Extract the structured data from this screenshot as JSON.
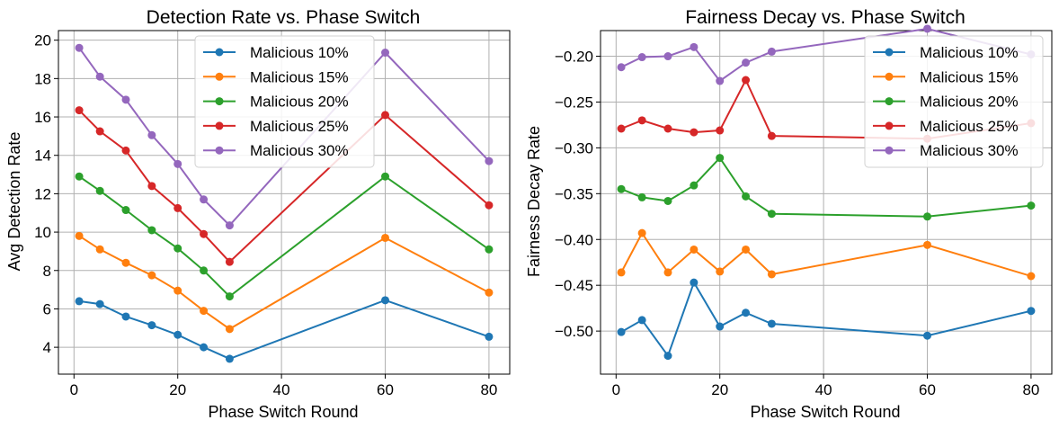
{
  "chart_data": [
    {
      "type": "line",
      "title": "Detection Rate vs. Phase Switch",
      "xlabel": "Phase Switch Round",
      "ylabel": "Avg Detection Rate",
      "x": [
        1,
        5,
        10,
        15,
        20,
        25,
        30,
        60,
        80
      ],
      "xlim": [
        -3,
        84
      ],
      "ylim": [
        2.6,
        20.5
      ],
      "xticks": [
        0,
        20,
        40,
        60,
        80
      ],
      "yticks": [
        4,
        6,
        8,
        10,
        12,
        14,
        16,
        18,
        20
      ],
      "xtick_labels": [
        "0",
        "20",
        "40",
        "60",
        "80"
      ],
      "ytick_labels": [
        "4",
        "6",
        "8",
        "10",
        "12",
        "14",
        "16",
        "18",
        "20"
      ],
      "grid": true,
      "legend_position": "top-right",
      "series": [
        {
          "name": "Malicious 10%",
          "color": "#1f77b4",
          "values": [
            6.4,
            6.25,
            5.6,
            5.15,
            4.65,
            4.0,
            3.4,
            6.45,
            4.55
          ]
        },
        {
          "name": "Malicious 15%",
          "color": "#ff7f0e",
          "values": [
            9.8,
            9.1,
            8.4,
            7.75,
            6.95,
            5.9,
            4.95,
            9.7,
            6.85
          ]
        },
        {
          "name": "Malicious 20%",
          "color": "#2ca02c",
          "values": [
            12.9,
            12.15,
            11.15,
            10.1,
            9.15,
            8.0,
            6.65,
            12.9,
            9.1
          ]
        },
        {
          "name": "Malicious 25%",
          "color": "#d62728",
          "values": [
            16.35,
            15.25,
            14.25,
            12.4,
            11.25,
            9.9,
            8.45,
            16.1,
            11.4
          ]
        },
        {
          "name": "Malicious 30%",
          "color": "#9467bd",
          "values": [
            19.6,
            18.1,
            16.9,
            15.05,
            13.55,
            11.7,
            10.35,
            19.35,
            13.7
          ]
        }
      ]
    },
    {
      "type": "line",
      "title": "Fairness Decay vs. Phase Switch",
      "xlabel": "Phase Switch Round",
      "ylabel": "Fairness Decay Rate",
      "x": [
        1,
        5,
        10,
        15,
        20,
        25,
        30,
        60,
        80
      ],
      "xlim": [
        -3,
        84
      ],
      "ylim": [
        -0.547,
        -0.172
      ],
      "xticks": [
        0,
        20,
        40,
        60,
        80
      ],
      "yticks": [
        -0.5,
        -0.45,
        -0.4,
        -0.35,
        -0.3,
        -0.25,
        -0.2
      ],
      "xtick_labels": [
        "0",
        "20",
        "40",
        "60",
        "80"
      ],
      "ytick_labels": [
        "−0.50",
        "−0.45",
        "−0.40",
        "−0.35",
        "−0.30",
        "−0.25",
        "−0.20"
      ],
      "grid": true,
      "legend_position": "top-right",
      "series": [
        {
          "name": "Malicious 10%",
          "color": "#1f77b4",
          "values": [
            -0.501,
            -0.488,
            -0.527,
            -0.447,
            -0.495,
            -0.48,
            -0.492,
            -0.505,
            -0.478
          ]
        },
        {
          "name": "Malicious 15%",
          "color": "#ff7f0e",
          "values": [
            -0.436,
            -0.393,
            -0.436,
            -0.411,
            -0.435,
            -0.411,
            -0.438,
            -0.406,
            -0.44
          ]
        },
        {
          "name": "Malicious 20%",
          "color": "#2ca02c",
          "values": [
            -0.345,
            -0.354,
            -0.358,
            -0.341,
            -0.311,
            -0.353,
            -0.372,
            -0.375,
            -0.363
          ]
        },
        {
          "name": "Malicious 25%",
          "color": "#d62728",
          "values": [
            -0.279,
            -0.27,
            -0.279,
            -0.283,
            -0.281,
            -0.226,
            -0.287,
            -0.29,
            -0.273
          ]
        },
        {
          "name": "Malicious 30%",
          "color": "#9467bd",
          "values": [
            -0.212,
            -0.201,
            -0.2,
            -0.19,
            -0.227,
            -0.207,
            -0.195,
            -0.17,
            -0.198
          ]
        }
      ]
    }
  ]
}
